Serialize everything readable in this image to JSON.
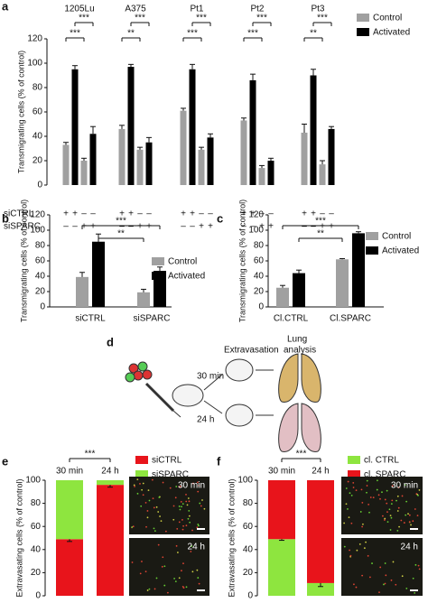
{
  "chart_data": [
    {
      "label": "a",
      "type": "bar",
      "categories": [
        "1205Lu",
        "A375",
        "Pt1",
        "Pt2",
        "Pt3"
      ],
      "y_label": "Transmigrating cells (% of control)",
      "ylim": [
        0,
        120
      ],
      "yticks": [
        0,
        20,
        40,
        60,
        80,
        100,
        120
      ],
      "series": [
        {
          "name": "Control",
          "color": "#a0a0a0",
          "values": [
            [
              33,
              20
            ],
            [
              46,
              29
            ],
            [
              61,
              29
            ],
            [
              53,
              14
            ],
            [
              43,
              17
            ]
          ],
          "errors": [
            [
              2,
              2
            ],
            [
              3,
              2
            ],
            [
              2,
              2
            ],
            [
              2,
              2
            ],
            [
              7,
              3
            ]
          ]
        },
        {
          "name": "Activated",
          "color": "#000000",
          "values": [
            [
              95,
              42
            ],
            [
              97,
              35
            ],
            [
              95,
              39
            ],
            [
              86,
              20
            ],
            [
              90,
              46
            ]
          ],
          "errors": [
            [
              3,
              6
            ],
            [
              2,
              4
            ],
            [
              4,
              3
            ],
            [
              5,
              2
            ],
            [
              5,
              2
            ]
          ]
        }
      ],
      "treatment_rows": [
        {
          "name": "siCTRL",
          "signs": [
            "+",
            "+",
            "–",
            "–"
          ]
        },
        {
          "name": "siSPARC",
          "signs": [
            "–",
            "–",
            "+",
            "+"
          ]
        }
      ],
      "significance": [
        [
          "***",
          "***"
        ],
        [
          "***",
          "**"
        ],
        [
          "***",
          "***"
        ],
        [
          "***",
          "***"
        ],
        [
          "***",
          "**"
        ]
      ]
    },
    {
      "label": "b",
      "type": "bar",
      "categories": [
        "siCTRL",
        "siSPARC"
      ],
      "y_label": "Transmigrating cells (% of control)",
      "ylim": [
        0,
        120
      ],
      "yticks": [
        0,
        20,
        40,
        60,
        80,
        100,
        120
      ],
      "series": [
        {
          "name": "Control",
          "color": "#a0a0a0",
          "values": [
            39,
            19
          ],
          "errors": [
            6,
            4
          ]
        },
        {
          "name": "Activated",
          "color": "#000000",
          "values": [
            85,
            47
          ],
          "errors": [
            10,
            5
          ]
        }
      ],
      "significance": [
        "***",
        "**"
      ]
    },
    {
      "label": "c",
      "type": "bar",
      "categories": [
        "Cl.CTRL",
        "Cl.SPARC"
      ],
      "y_label": "Transmigrating cells (% of control)",
      "ylim": [
        0,
        120
      ],
      "yticks": [
        0,
        20,
        40,
        60,
        80,
        100,
        120
      ],
      "series": [
        {
          "name": "Control",
          "color": "#a0a0a0",
          "values": [
            25,
            62
          ],
          "errors": [
            3,
            1
          ]
        },
        {
          "name": "Activated",
          "color": "#000000",
          "values": [
            44,
            96
          ],
          "errors": [
            4,
            2
          ]
        }
      ],
      "significance": [
        "***",
        "**"
      ]
    },
    {
      "label": "e",
      "type": "stacked_bar",
      "categories": [
        "30 min",
        "24 h"
      ],
      "y_label": "Extravasating cells (% of control)",
      "ylim": [
        0,
        100
      ],
      "yticks": [
        0,
        20,
        40,
        60,
        80,
        100
      ],
      "series": [
        {
          "name": "siCTRL",
          "color": "#e8141b",
          "values": [
            49,
            96
          ],
          "errors": [
            2,
            2
          ]
        },
        {
          "name": "siSPARC",
          "color": "#8ee53f",
          "values": [
            51,
            4
          ]
        }
      ],
      "significance": "***",
      "image_labels": [
        "30 min",
        "24 h"
      ]
    },
    {
      "label": "f",
      "type": "stacked_bar",
      "categories": [
        "30 min",
        "24 h"
      ],
      "y_label": "Extravasating cells (% of control)",
      "ylim": [
        0,
        100
      ],
      "yticks": [
        0,
        20,
        40,
        60,
        80,
        100
      ],
      "series": [
        {
          "name": "cl. CTRL",
          "color": "#8ee53f",
          "values": [
            49,
            11
          ],
          "errors": [
            1,
            3
          ]
        },
        {
          "name": "cl. SPARC",
          "color": "#e8141b",
          "values": [
            51,
            89
          ]
        }
      ],
      "significance": "***",
      "image_labels": [
        "30 min",
        "24 h"
      ]
    }
  ],
  "diagram": {
    "label": "d",
    "extravasation": "Extravasation",
    "lung_analysis": [
      "Lung",
      "analysis"
    ],
    "times": [
      "30 min",
      "24 h"
    ]
  }
}
